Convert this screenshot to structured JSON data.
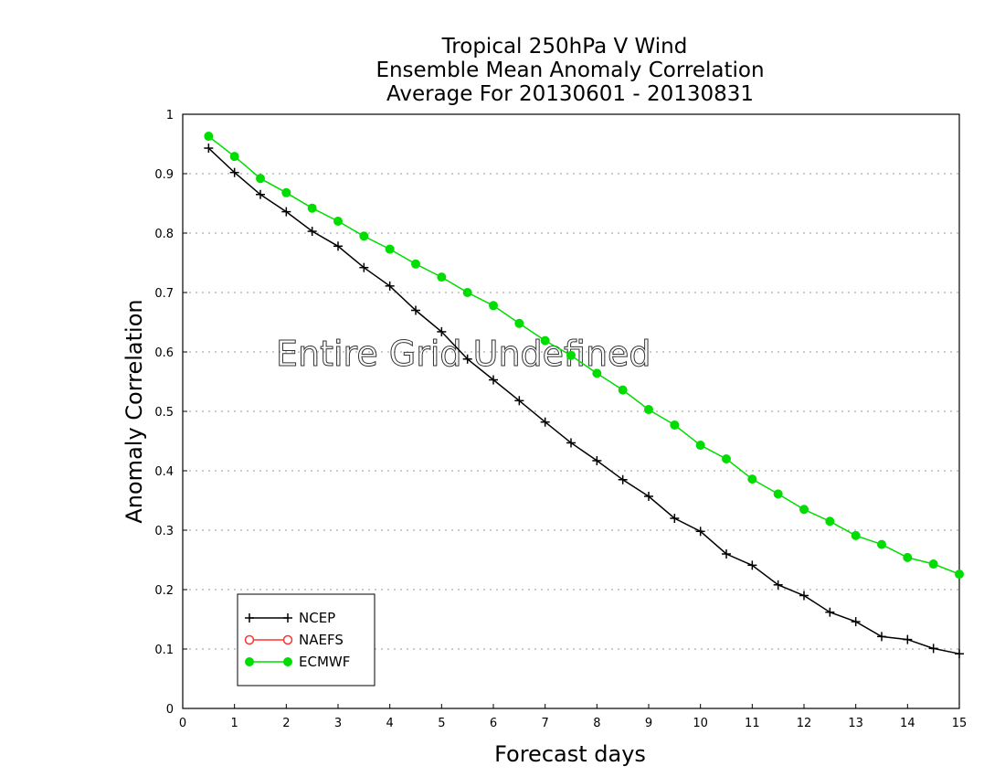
{
  "chart_data": {
    "type": "line",
    "title_lines": [
      "Tropical 250hPa V Wind",
      "Ensemble Mean Anomaly Correlation",
      "Average For 20130601 - 20130831"
    ],
    "xlabel": "Forecast days",
    "ylabel": "Anomaly Correlation",
    "xlim": [
      0,
      15
    ],
    "ylim": [
      0,
      1
    ],
    "x_ticks": [
      "0",
      "1",
      "2",
      "3",
      "4",
      "5",
      "6",
      "7",
      "8",
      "9",
      "10",
      "11",
      "12",
      "13",
      "14",
      "15"
    ],
    "y_ticks": [
      "0",
      "0.1",
      "0.2",
      "0.3",
      "0.4",
      "0.5",
      "0.6",
      "0.7",
      "0.8",
      "0.9",
      "1"
    ],
    "grid": "horizontal dotted",
    "legend_position": "bottom-left",
    "annotation": "Entire Grid Undefined",
    "series": [
      {
        "name": "NCEP",
        "color": "#000000",
        "marker": "plus",
        "x": [
          0.5,
          1,
          1.5,
          2,
          2.5,
          3,
          3.5,
          4,
          4.5,
          5,
          5.5,
          6,
          6.5,
          7,
          7.5,
          8,
          8.5,
          9,
          9.5,
          10,
          10.5,
          11,
          11.5,
          12,
          12.5,
          13,
          13.5,
          14,
          14.5,
          15
        ],
        "y": [
          0.943,
          0.902,
          0.865,
          0.836,
          0.803,
          0.778,
          0.742,
          0.711,
          0.67,
          0.634,
          0.588,
          0.553,
          0.518,
          0.482,
          0.447,
          0.417,
          0.385,
          0.357,
          0.32,
          0.298,
          0.26,
          0.241,
          0.208,
          0.19,
          0.162,
          0.146,
          0.121,
          0.116,
          0.101,
          0.092
        ]
      },
      {
        "name": "NAEFS",
        "color": "#ff3333",
        "marker": "open-circle",
        "x": [],
        "y": []
      },
      {
        "name": "ECMWF",
        "color": "#00dd00",
        "marker": "filled-circle",
        "x": [
          0.5,
          1,
          1.5,
          2,
          2.5,
          3,
          3.5,
          4,
          4.5,
          5,
          5.5,
          6,
          6.5,
          7,
          7.5,
          8,
          8.5,
          9,
          9.5,
          10,
          10.5,
          11,
          11.5,
          12,
          12.5,
          13,
          13.5,
          14,
          14.5,
          15
        ],
        "y": [
          0.963,
          0.929,
          0.892,
          0.868,
          0.842,
          0.82,
          0.795,
          0.773,
          0.748,
          0.726,
          0.7,
          0.678,
          0.648,
          0.619,
          0.594,
          0.564,
          0.536,
          0.503,
          0.477,
          0.443,
          0.42,
          0.386,
          0.361,
          0.335,
          0.315,
          0.291,
          0.276,
          0.254,
          0.243,
          0.226
        ]
      }
    ]
  }
}
